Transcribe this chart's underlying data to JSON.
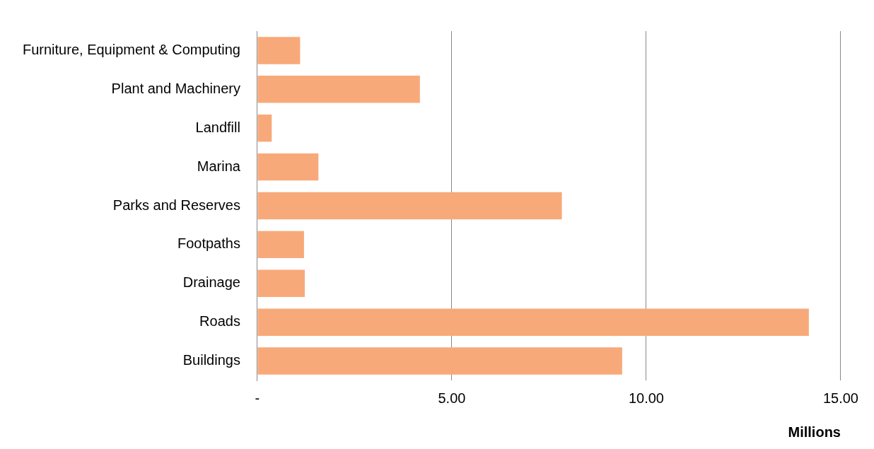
{
  "chart_data": {
    "type": "bar",
    "orientation": "horizontal",
    "xlabel": "Millions",
    "categories": [
      "Furniture, Equipment & Computing",
      "Plant and Machinery",
      "Landfill",
      "Marina",
      "Parks and Reserves",
      "Footpaths",
      "Drainage",
      "Roads",
      "Buildings"
    ],
    "values": [
      1.1,
      4.18,
      0.37,
      1.57,
      7.83,
      1.2,
      1.22,
      14.18,
      9.38
    ],
    "color": "#f8a97a",
    "xlim": [
      0,
      15
    ],
    "xticks": [
      {
        "value": 0,
        "label": "-"
      },
      {
        "value": 5,
        "label": "5.00"
      },
      {
        "value": 10,
        "label": "10.00"
      },
      {
        "value": 15,
        "label": "15.00"
      }
    ],
    "grid": "x",
    "legend": false
  }
}
